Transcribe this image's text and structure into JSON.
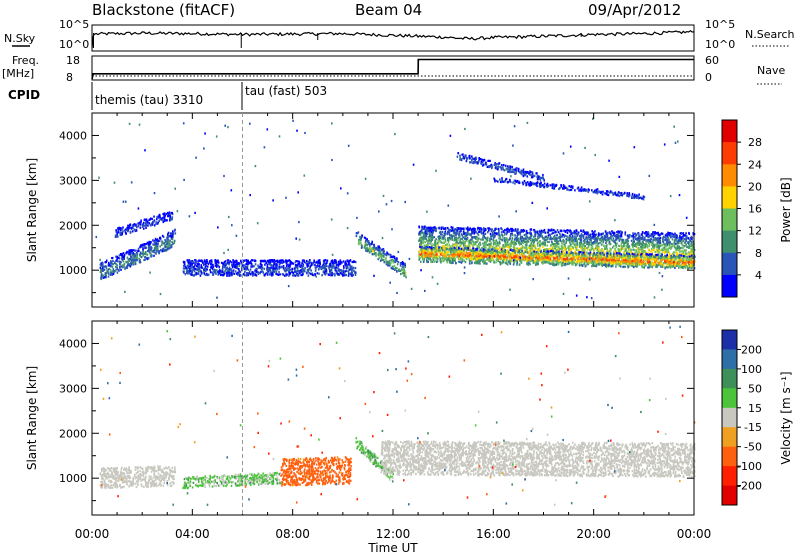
{
  "header": {
    "station": "Blackstone (fitACF)",
    "beam": "Beam 04",
    "date": "09/Apr/2012"
  },
  "top_panels": {
    "nsky_label": "N.Sky",
    "nsky_ticks": [
      "10^5",
      "10^0"
    ],
    "nsearch_label": "N.Search",
    "nsearch_ticks": [
      "10^5",
      "10^0"
    ],
    "freq_label_line1": "Freq.",
    "freq_label_line2": "[MHz]",
    "freq_ticks": [
      "18",
      "8"
    ],
    "nave_label": "Nave",
    "nave_ticks": [
      "60",
      "0"
    ],
    "cpid_label": "CPID",
    "cpid_entries": [
      {
        "name": "themis (tau) 3310",
        "start": "00:00",
        "end": "06:00"
      },
      {
        "name": "tau (fast) 503",
        "start": "06:00",
        "end": "24:00"
      }
    ]
  },
  "power_panel": {
    "ylabel": "Slant Range [km]",
    "colorbar_label": "Power [dB]",
    "colorbar_ticks": [
      "28",
      "24",
      "20",
      "16",
      "12",
      "8",
      "4"
    ],
    "colorbar_colors": [
      "#e00000",
      "#ff3c00",
      "#ff8c00",
      "#ffd200",
      "#6cbf5c",
      "#3f8f6f",
      "#2a55b8",
      "#0000ff"
    ]
  },
  "velocity_panel": {
    "ylabel": "Slant Range [km]",
    "colorbar_label": "Velocity [m s⁻¹]",
    "colorbar_ticks": [
      "200",
      "100",
      "50",
      "15",
      "-15",
      "-50",
      "-100",
      "-200"
    ],
    "colorbar_colors": [
      "#1b2fa8",
      "#2d6fa6",
      "#3e8f5a",
      "#4cc43a",
      "#c8c8c0",
      "#f0a020",
      "#ff6010",
      "#ff2000",
      "#e00000"
    ]
  },
  "x_axis": {
    "label": "Time UT",
    "ticks": [
      "00:00",
      "04:00",
      "08:00",
      "12:00",
      "16:00",
      "20:00",
      "00:00"
    ]
  },
  "chart_data": [
    {
      "type": "line",
      "name": "nsky",
      "x_range_hours": [
        0,
        24
      ],
      "x_hours": [
        0,
        0.05,
        0.1,
        2,
        4,
        6,
        8,
        10,
        12,
        14,
        15,
        16,
        18,
        20,
        22,
        24
      ],
      "values_log10": [
        0.2,
        3.0,
        3.4,
        3.6,
        3.5,
        3.3,
        3.4,
        3.5,
        3.1,
        2.7,
        2.3,
        2.6,
        2.9,
        3.3,
        3.5,
        3.9
      ],
      "ylim_log10": [
        0,
        5
      ]
    },
    {
      "type": "line",
      "name": "frequency",
      "x_hours": [
        0,
        0.05,
        6,
        6.01,
        13,
        13.01,
        24
      ],
      "values": [
        8,
        10.5,
        10.5,
        10.5,
        10.5,
        17.3,
        17.3
      ],
      "ylim": [
        8,
        18
      ]
    },
    {
      "type": "scatter",
      "title": "Power",
      "xlabel": "Time UT",
      "ylabel": "Slant Range [km]",
      "ylim": [
        180,
        4500
      ],
      "x_range_hours": [
        0,
        24
      ],
      "yticks": [
        1000,
        2000,
        3000,
        4000
      ],
      "bands": [
        {
          "t0": 0.3,
          "t1": 3.3,
          "r0a": 800,
          "r0b": 1550,
          "thick": 380,
          "level": 10
        },
        {
          "t0": 0.9,
          "t1": 3.2,
          "r0a": 1750,
          "r0b": 2150,
          "thick": 200,
          "level": 5
        },
        {
          "t0": 3.6,
          "t1": 10.5,
          "r0a": 900,
          "r0b": 900,
          "thick": 350,
          "level": 6
        },
        {
          "t0": 10.5,
          "t1": 12.5,
          "r0a": 1600,
          "r0b": 850,
          "thick": 300,
          "level": 14
        },
        {
          "t0": 13.0,
          "t1": 24.0,
          "r0a": 1200,
          "r0b": 1050,
          "thick": 800,
          "level": 18
        },
        {
          "t0": 13.0,
          "t1": 24.0,
          "r0a": 1300,
          "r0b": 1100,
          "thick": 250,
          "level": 26
        },
        {
          "t0": 14.5,
          "t1": 18.0,
          "r0a": 3500,
          "r0b": 3000,
          "thick": 150,
          "level": 6
        },
        {
          "t0": 16.0,
          "t1": 22.0,
          "r0a": 3000,
          "r0b": 2600,
          "thick": 100,
          "level": 5
        }
      ]
    },
    {
      "type": "scatter",
      "title": "Velocity",
      "xlabel": "Time UT",
      "ylabel": "Slant Range [km]",
      "ylim": [
        180,
        4500
      ],
      "x_range_hours": [
        0,
        24
      ],
      "yticks": [
        1000,
        2000,
        3000,
        4000
      ],
      "bands": [
        {
          "t0": 0.3,
          "t1": 3.3,
          "r0a": 800,
          "r0b": 850,
          "thick": 450,
          "velocity": 0
        },
        {
          "t0": 3.6,
          "t1": 7.5,
          "r0a": 800,
          "r0b": 900,
          "thick": 250,
          "velocity": 20
        },
        {
          "t0": 7.5,
          "t1": 10.3,
          "r0a": 850,
          "r0b": 900,
          "thick": 600,
          "velocity": -45
        },
        {
          "t0": 10.5,
          "t1": 12.0,
          "r0a": 1700,
          "r0b": 900,
          "thick": 250,
          "velocity": 25
        },
        {
          "t0": 11.5,
          "t1": 24.0,
          "r0a": 1100,
          "r0b": 1050,
          "thick": 750,
          "velocity": 0
        }
      ]
    }
  ]
}
